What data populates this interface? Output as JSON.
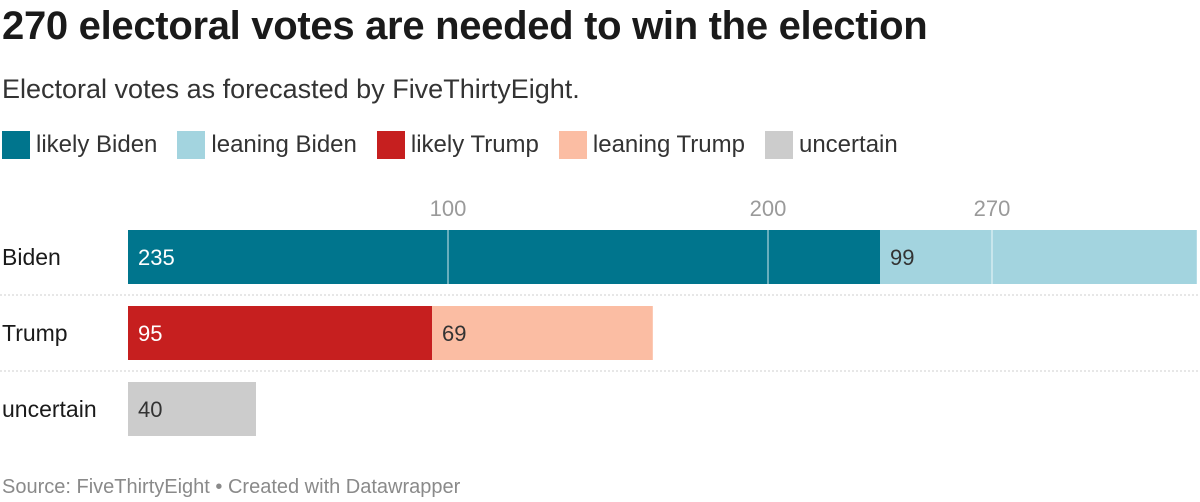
{
  "chart_data": {
    "type": "bar",
    "title": "270 electoral votes are needed to win the election",
    "subtitle": "Electoral votes as forecasted by FiveThirtyEight.",
    "legend": [
      {
        "label": "likely Biden",
        "color": "#00758d"
      },
      {
        "label": "leaning Biden",
        "color": "#a3d4df"
      },
      {
        "label": "likely Trump",
        "color": "#c61f1f"
      },
      {
        "label": "leaning Trump",
        "color": "#fbbda3"
      },
      {
        "label": "uncertain",
        "color": "#cccccc"
      }
    ],
    "categories": [
      "Biden",
      "Trump",
      "uncertain"
    ],
    "series": [
      {
        "name": "likely Biden",
        "values": [
          235,
          0,
          0
        ],
        "color": "#00758d"
      },
      {
        "name": "leaning Biden",
        "values": [
          99,
          0,
          0
        ],
        "color": "#a3d4df"
      },
      {
        "name": "likely Trump",
        "values": [
          0,
          95,
          0
        ],
        "color": "#c61f1f"
      },
      {
        "name": "leaning Trump",
        "values": [
          0,
          69,
          0
        ],
        "color": "#fbbda3"
      },
      {
        "name": "uncertain",
        "values": [
          0,
          0,
          40
        ],
        "color": "#cccccc"
      }
    ],
    "x_ticks": [
      100,
      200,
      270
    ],
    "xlim": [
      0,
      335
    ],
    "legend_position": "top-left",
    "stacked": true,
    "source": "Source: FiveThirtyEight • Created with Datawrapper"
  }
}
